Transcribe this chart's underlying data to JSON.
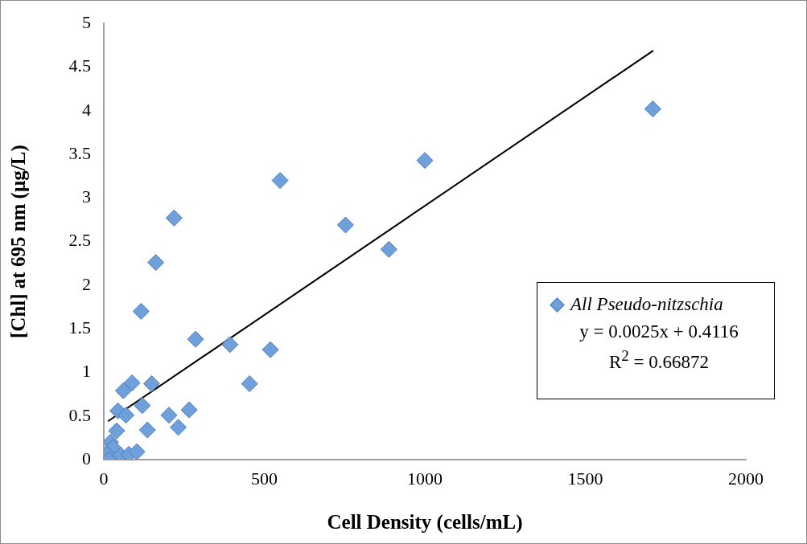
{
  "chart_data": {
    "type": "scatter",
    "xlabel": "Cell Density (cells/mL)",
    "ylabel": "[Chl] at 695 nm (µg/L)",
    "xlim": [
      0,
      2000
    ],
    "xticks": [
      0,
      500,
      1000,
      1500,
      2000
    ],
    "ylim": [
      0,
      5
    ],
    "yticks": [
      0,
      0.5,
      1,
      1.5,
      2,
      2.5,
      3,
      3.5,
      4,
      4.5,
      5
    ],
    "grid": false,
    "legend": "right",
    "marker": "diamond",
    "series": [
      {
        "name": "All Pseudo-nitzschia",
        "color": "#6fa0dc",
        "x": [
          219,
          162,
          116,
          286,
          393,
          454,
          61,
          88,
          149,
          44,
          69,
          120,
          203,
          266,
          232,
          136,
          40,
          21,
          28,
          11,
          15,
          53,
          78,
          103,
          549,
          1000,
          753,
          888,
          1710,
          519
        ],
        "values": [
          2.77,
          2.26,
          1.7,
          1.38,
          1.32,
          0.87,
          0.79,
          0.88,
          0.87,
          0.56,
          0.51,
          0.62,
          0.51,
          0.57,
          0.37,
          0.34,
          0.33,
          0.2,
          0.14,
          0.06,
          0,
          0.05,
          0.06,
          0.09,
          3.2,
          3.43,
          2.69,
          2.41,
          4.02,
          1.26
        ]
      },
      {
        "type": "line",
        "color": "#000000",
        "marker": "none",
        "line_style": "solid",
        "x": [
          13,
          1712
        ],
        "values": [
          0.44,
          4.69
        ]
      }
    ],
    "annotations": [
      "y = 0.0025x + 0.4116",
      "R$^{2}$ = 0.66872"
    ]
  }
}
